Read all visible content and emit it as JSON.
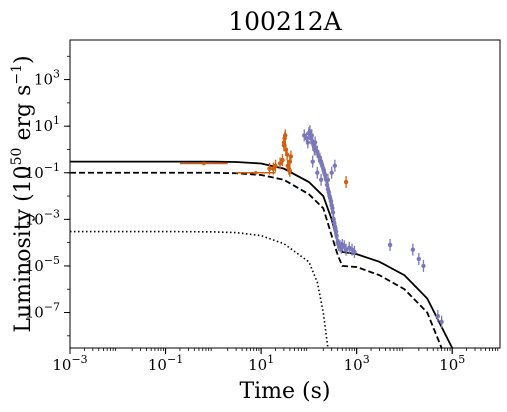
{
  "chart_data": {
    "type": "scatter",
    "title": "100212A",
    "xlabel": "Time (s)",
    "ylabel_main": "Luminosity (10",
    "ylabel_sup": "50",
    "ylabel_units": " erg s",
    "ylabel_sup2": "−1",
    "ylabel_close": ")",
    "xscale": "log",
    "yscale": "log",
    "xlim": [
      0.001,
      1000000
    ],
    "ylim": [
      3e-09,
      50000
    ],
    "x_ticks": [
      {
        "base": "10",
        "exp": "−3",
        "value": 0.001
      },
      {
        "base": "10",
        "exp": "−1",
        "value": 0.1
      },
      {
        "base": "10",
        "exp": "1",
        "value": 10
      },
      {
        "base": "10",
        "exp": "3",
        "value": 1000
      },
      {
        "base": "10",
        "exp": "5",
        "value": 100000
      }
    ],
    "y_ticks": [
      {
        "base": "10",
        "exp": "−7",
        "value": 1e-07
      },
      {
        "base": "10",
        "exp": "−5",
        "value": 1e-05
      },
      {
        "base": "10",
        "exp": "−3",
        "value": 0.001
      },
      {
        "base": "10",
        "exp": "−1",
        "value": 0.1
      },
      {
        "base": "10",
        "exp": "1",
        "value": 10
      },
      {
        "base": "10",
        "exp": "3",
        "value": 1000
      }
    ],
    "grid": false,
    "colors": {
      "orange": "#d35f0f",
      "purple": "#7b78b8",
      "model": "#000000"
    },
    "model_curves": [
      {
        "style": "solid",
        "points": [
          [
            0.001,
            0.3
          ],
          [
            0.1,
            0.3
          ],
          [
            1,
            0.3
          ],
          [
            3,
            0.29
          ],
          [
            10,
            0.25
          ],
          [
            30,
            0.15
          ],
          [
            100,
            0.04
          ],
          [
            200,
            0.01
          ],
          [
            300,
            0.001
          ],
          [
            400,
            0.0001
          ],
          [
            500,
            4e-05
          ],
          [
            1000,
            3.2e-05
          ],
          [
            3000,
            1.5e-05
          ],
          [
            10000,
            4e-06
          ],
          [
            30000,
            4e-07
          ],
          [
            100000,
            3e-09
          ]
        ]
      },
      {
        "style": "dashed",
        "points": [
          [
            0.001,
            0.1
          ],
          [
            0.1,
            0.1
          ],
          [
            1,
            0.1
          ],
          [
            3,
            0.095
          ],
          [
            10,
            0.08
          ],
          [
            30,
            0.05
          ],
          [
            100,
            0.012
          ],
          [
            200,
            0.003
          ],
          [
            300,
            0.0002
          ],
          [
            400,
            3e-05
          ],
          [
            500,
            1e-05
          ],
          [
            1000,
            9e-06
          ],
          [
            3000,
            4e-06
          ],
          [
            10000,
            1e-06
          ],
          [
            30000,
            1e-07
          ],
          [
            60000,
            3e-09
          ]
        ]
      },
      {
        "style": "dotted",
        "points": [
          [
            0.001,
            0.0003
          ],
          [
            0.1,
            0.0003
          ],
          [
            1,
            0.00029
          ],
          [
            3,
            0.00027
          ],
          [
            10,
            0.0002
          ],
          [
            30,
            9e-05
          ],
          [
            100,
            1.5e-05
          ],
          [
            150,
            2e-06
          ],
          [
            200,
            1e-07
          ],
          [
            250,
            3e-09
          ]
        ]
      }
    ],
    "series": [
      {
        "color": "orange",
        "points": [
          [
            15,
            0.15
          ],
          [
            18,
            0.15
          ],
          [
            20,
            0.2
          ],
          [
            25,
            0.25
          ],
          [
            28,
            0.35
          ],
          [
            30,
            2
          ],
          [
            30,
            1.5
          ],
          [
            31,
            3
          ],
          [
            32,
            4
          ],
          [
            33,
            1
          ],
          [
            35,
            0.6
          ],
          [
            36,
            0.2
          ],
          [
            38,
            0.15
          ],
          [
            40,
            0.3
          ],
          [
            42,
            0.5
          ],
          [
            40,
            0.12
          ],
          [
            600,
            0.04
          ]
        ],
        "xerr_points": [
          [
            2,
            0.2,
            0.25
          ],
          [
            3,
            20,
            0.1
          ]
        ]
      },
      {
        "color": "purple",
        "points": [
          [
            80,
            4
          ],
          [
            90,
            3
          ],
          [
            95,
            2
          ],
          [
            100,
            5
          ],
          [
            105,
            6
          ],
          [
            110,
            3
          ],
          [
            115,
            4
          ],
          [
            120,
            2
          ],
          [
            125,
            1.5
          ],
          [
            130,
            1
          ],
          [
            135,
            2
          ],
          [
            140,
            1
          ],
          [
            150,
            0.8
          ],
          [
            160,
            0.5
          ],
          [
            170,
            0.4
          ],
          [
            180,
            0.3
          ],
          [
            190,
            0.2
          ],
          [
            200,
            0.15
          ],
          [
            210,
            0.1
          ],
          [
            220,
            0.08
          ],
          [
            230,
            0.05
          ],
          [
            240,
            0.03
          ],
          [
            250,
            0.02
          ],
          [
            260,
            0.015
          ],
          [
            270,
            0.01
          ],
          [
            280,
            0.008
          ],
          [
            290,
            0.006
          ],
          [
            300,
            0.004
          ],
          [
            310,
            0.003
          ],
          [
            320,
            0.002
          ],
          [
            330,
            0.001
          ],
          [
            340,
            0.0007
          ],
          [
            350,
            0.0005
          ],
          [
            360,
            0.0004
          ],
          [
            370,
            0.0003
          ],
          [
            380,
            0.0002
          ],
          [
            400,
            0.0001
          ],
          [
            420,
            8e-05
          ],
          [
            450,
            7e-05
          ],
          [
            480,
            6e-05
          ],
          [
            500,
            8e-05
          ],
          [
            550,
            7e-05
          ],
          [
            600,
            5e-05
          ],
          [
            700,
            6e-05
          ],
          [
            800,
            5e-05
          ],
          [
            900,
            4e-05
          ],
          [
            5000,
            8e-05
          ],
          [
            15000,
            5e-05
          ],
          [
            20000,
            2e-05
          ],
          [
            25000,
            1e-05
          ],
          [
            50000,
            7e-08
          ],
          [
            60000,
            4e-08
          ],
          [
            120,
            0.3
          ],
          [
            150,
            0.1
          ],
          [
            180,
            0.05
          ],
          [
            250,
            0.05
          ],
          [
            300,
            0.1
          ],
          [
            350,
            0.2
          ]
        ]
      }
    ]
  }
}
